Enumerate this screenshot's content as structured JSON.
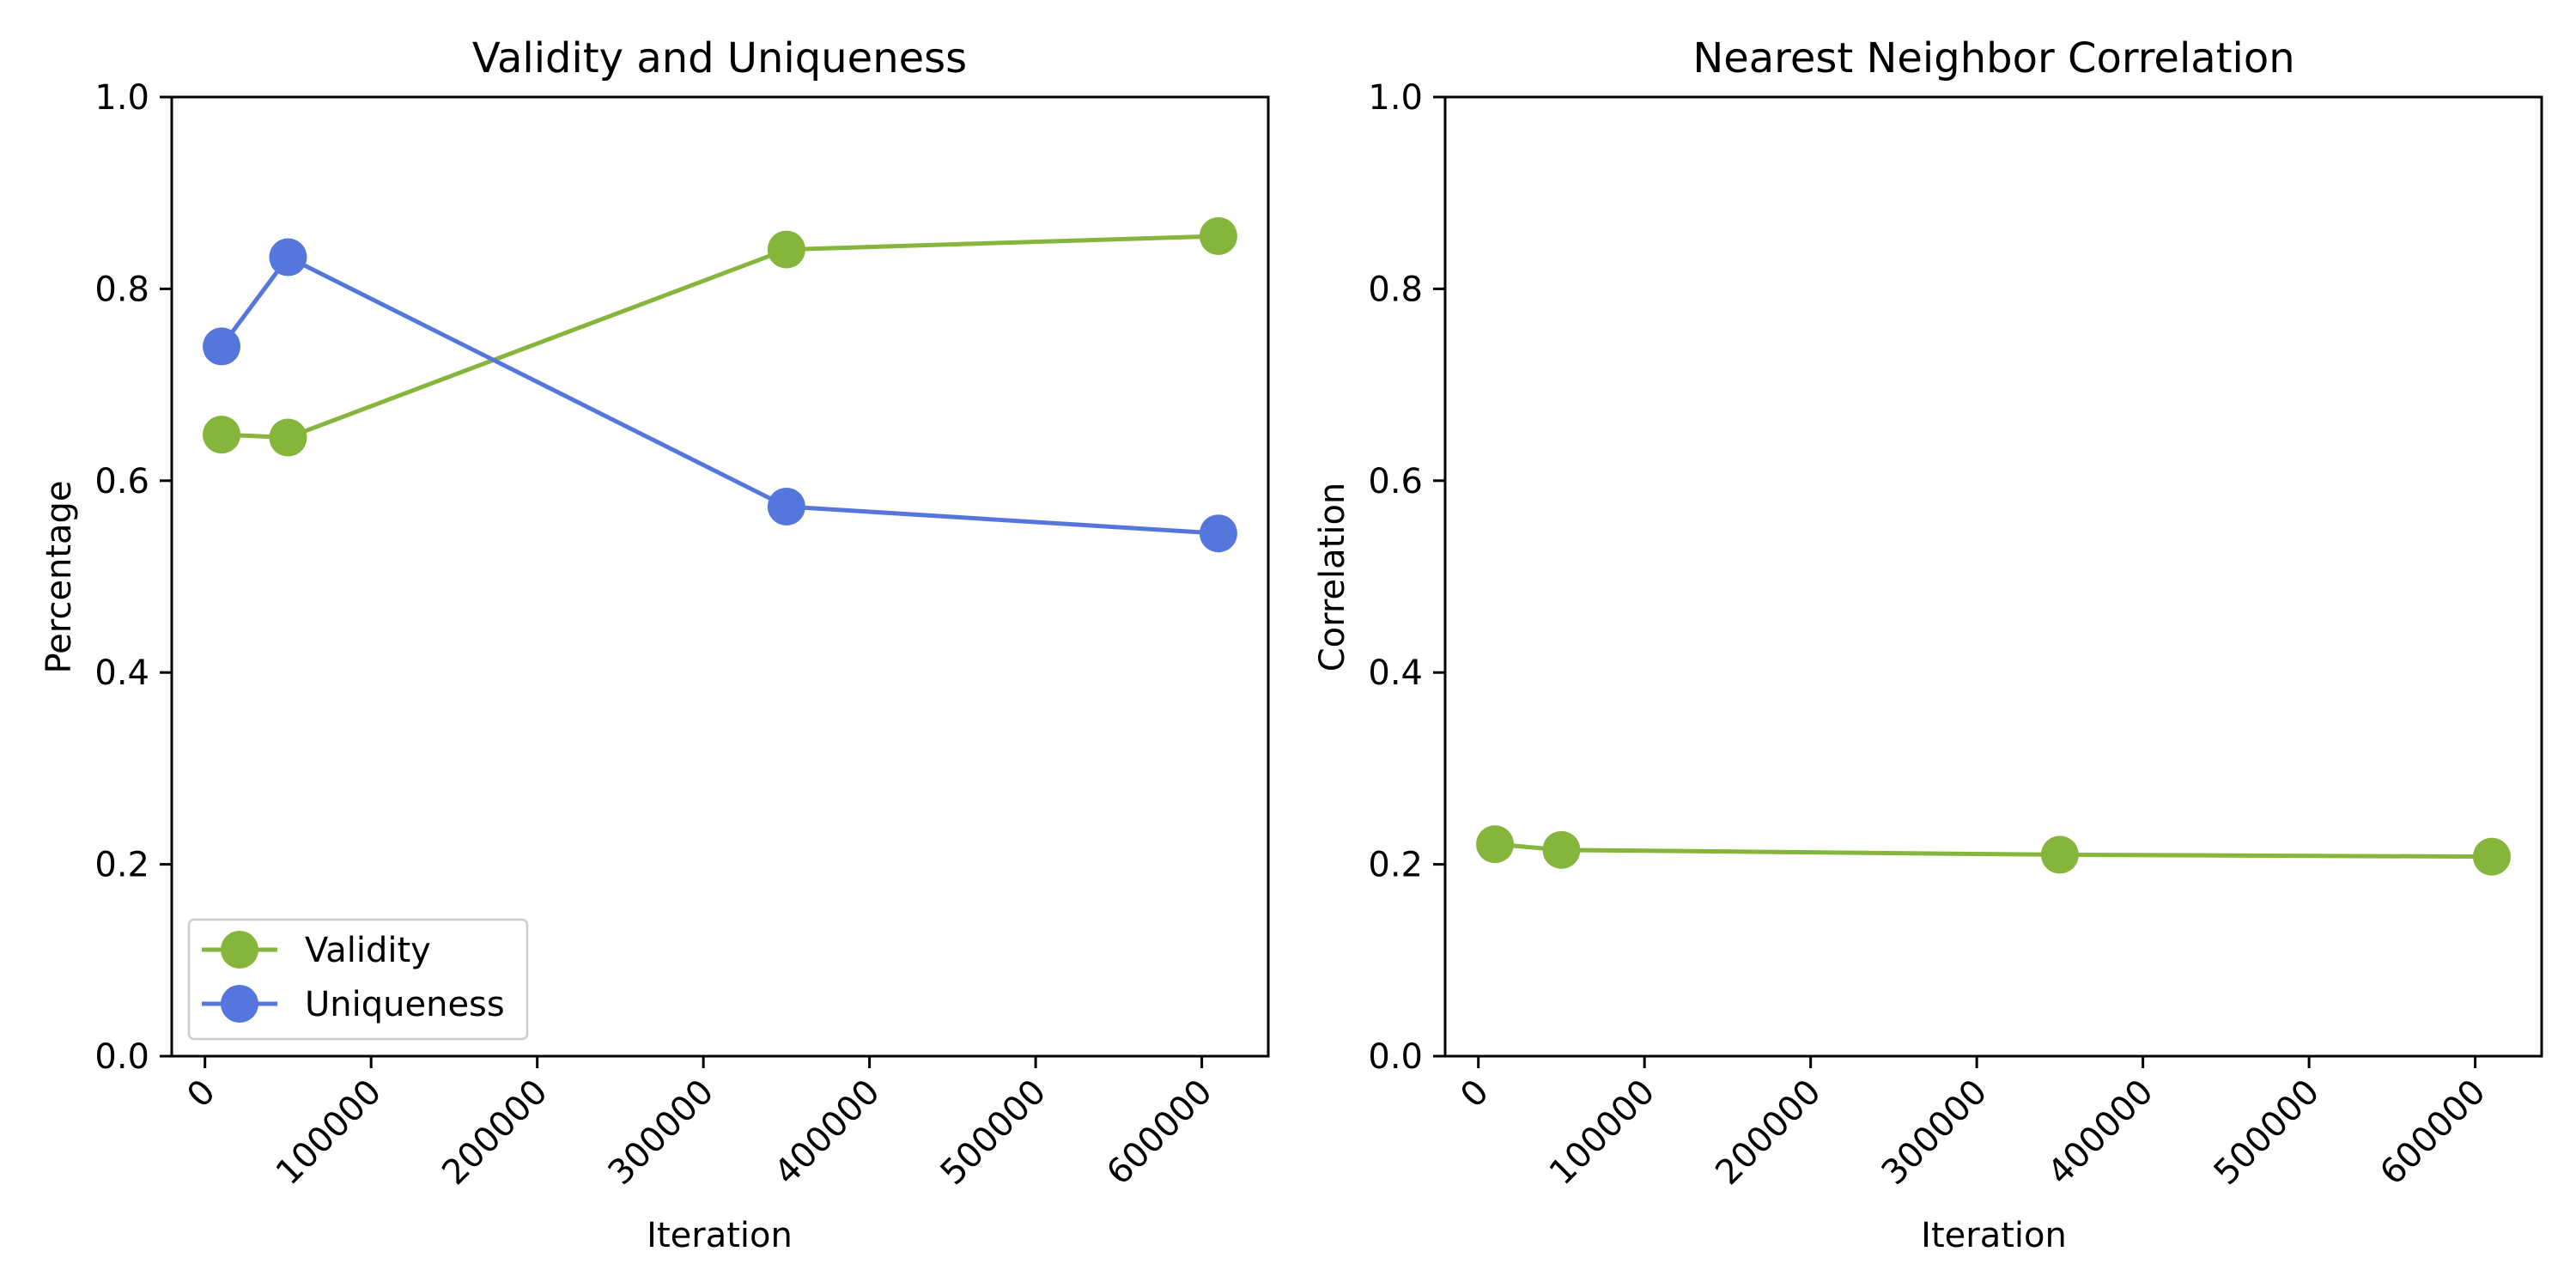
{
  "chart_data": [
    {
      "type": "line",
      "title": "Validity and Uniqueness",
      "xlabel": "Iteration",
      "ylabel": "Percentage",
      "xlim": [
        -20000,
        640000
      ],
      "ylim": [
        0.0,
        1.0
      ],
      "xticks": [
        0,
        100000,
        200000,
        300000,
        400000,
        500000,
        600000
      ],
      "xtick_labels": [
        "0",
        "100000",
        "200000",
        "300000",
        "400000",
        "500000",
        "600000"
      ],
      "yticks": [
        0.0,
        0.2,
        0.4,
        0.6,
        0.8,
        1.0
      ],
      "ytick_labels": [
        "0.0",
        "0.2",
        "0.4",
        "0.6",
        "0.8",
        "1.0"
      ],
      "grid": false,
      "legend": "lower-left",
      "series": [
        {
          "name": "Validity",
          "color": "#86b53c",
          "x": [
            10000,
            50000,
            350000,
            610000
          ],
          "y": [
            0.648,
            0.645,
            0.841,
            0.855
          ]
        },
        {
          "name": "Uniqueness",
          "color": "#5577dd",
          "x": [
            10000,
            50000,
            350000,
            610000
          ],
          "y": [
            0.74,
            0.833,
            0.573,
            0.545
          ]
        }
      ]
    },
    {
      "type": "line",
      "title": "Nearest Neighbor Correlation",
      "xlabel": "Iteration",
      "ylabel": "Correlation",
      "xlim": [
        -20000,
        640000
      ],
      "ylim": [
        0.0,
        1.0
      ],
      "xticks": [
        0,
        100000,
        200000,
        300000,
        400000,
        500000,
        600000
      ],
      "xtick_labels": [
        "0",
        "100000",
        "200000",
        "300000",
        "400000",
        "500000",
        "600000"
      ],
      "yticks": [
        0.0,
        0.2,
        0.4,
        0.6,
        0.8,
        1.0
      ],
      "ytick_labels": [
        "0.0",
        "0.2",
        "0.4",
        "0.6",
        "0.8",
        "1.0"
      ],
      "grid": false,
      "legend": "none",
      "series": [
        {
          "color": "#86b53c",
          "x": [
            10000,
            50000,
            350000,
            610000
          ],
          "y": [
            0.221,
            0.215,
            0.21,
            0.208
          ]
        }
      ]
    }
  ]
}
